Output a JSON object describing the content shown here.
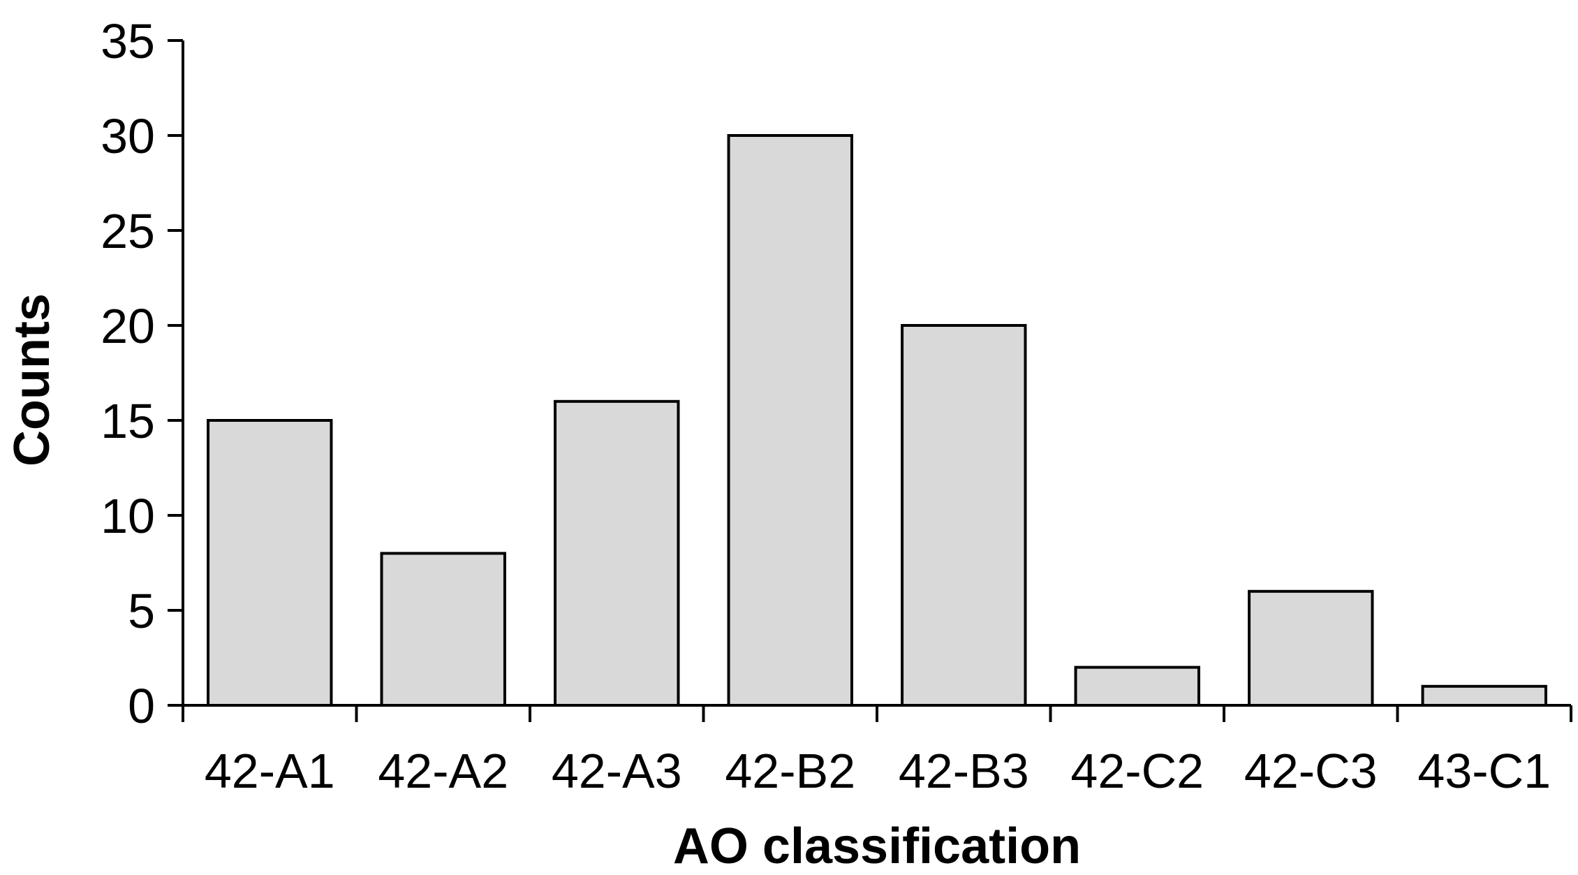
{
  "chart_data": {
    "type": "bar",
    "categories": [
      "42-A1",
      "42-A2",
      "42-A3",
      "42-B2",
      "42-B3",
      "42-C2",
      "42-C3",
      "43-C1"
    ],
    "values": [
      15,
      8,
      16,
      30,
      20,
      2,
      6,
      1
    ],
    "title": "",
    "xlabel": "AO classification",
    "ylabel": "Counts",
    "ylim": [
      0,
      35
    ],
    "yticks": [
      0,
      5,
      10,
      15,
      20,
      25,
      30,
      35
    ],
    "grid": false,
    "legend": "none",
    "bar_fill": "#d9d9d9",
    "bar_stroke": "#000000"
  }
}
